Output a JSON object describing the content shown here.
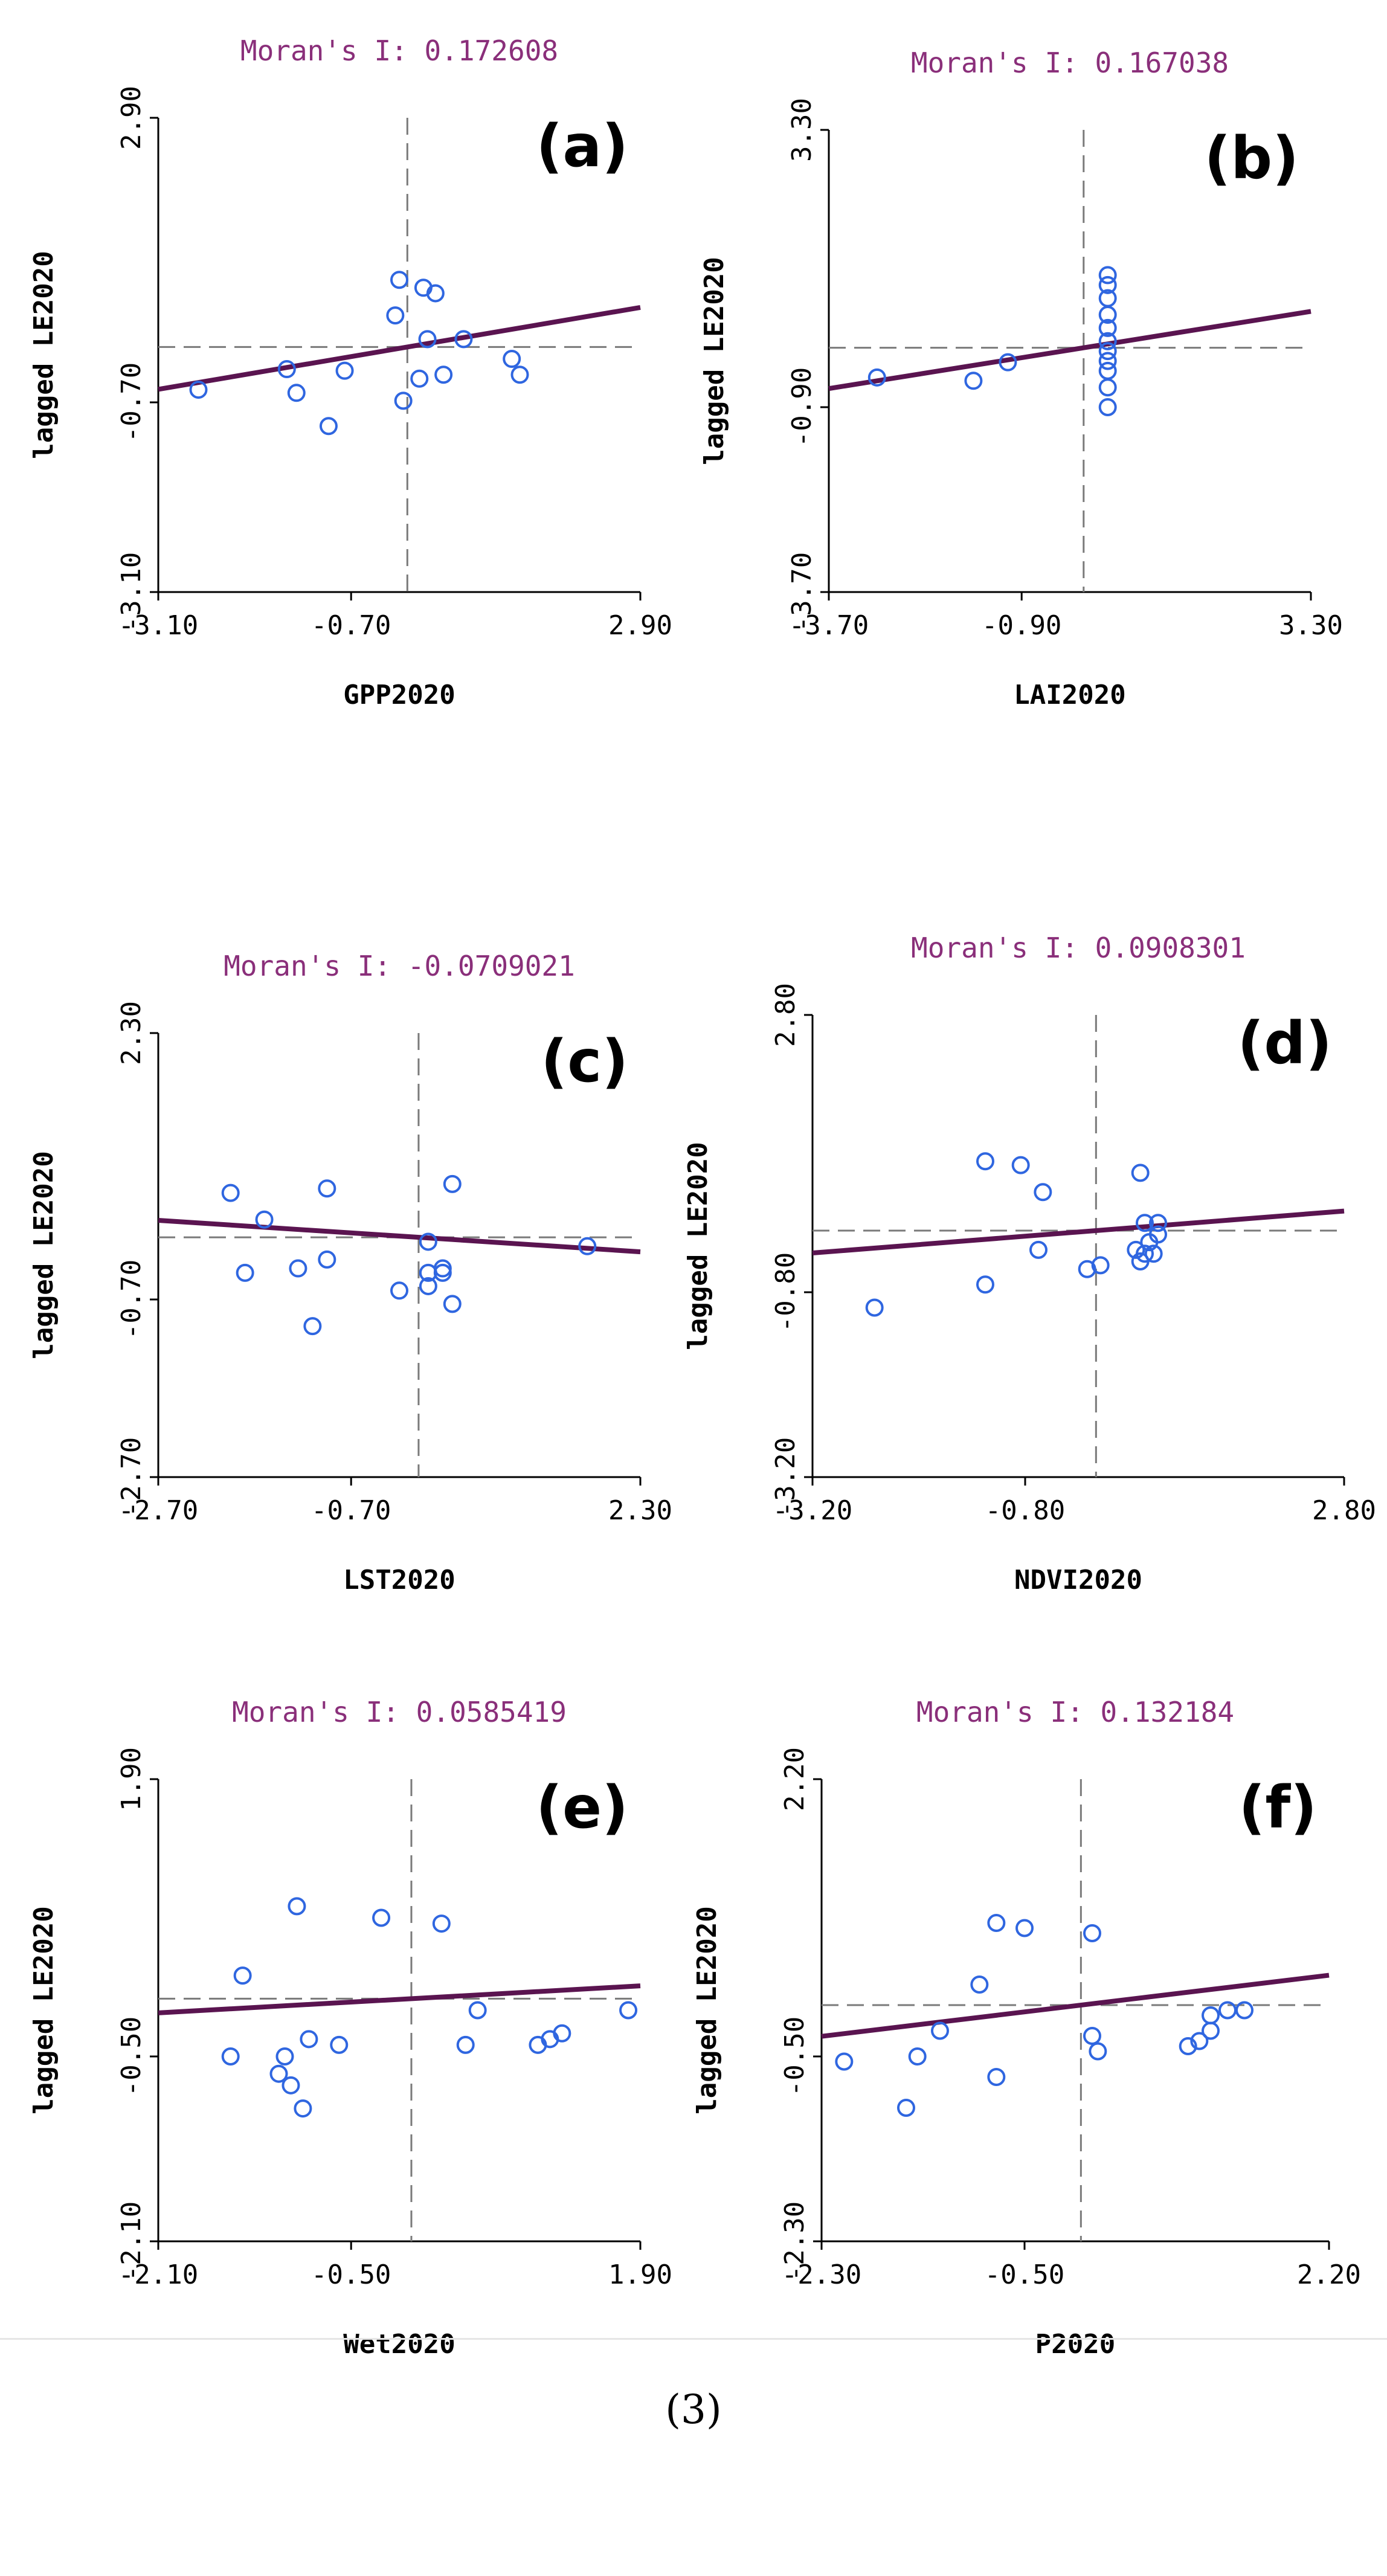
{
  "caption": "(3)",
  "chart_data": [
    {
      "type": "scatter",
      "panel": "(a)",
      "title": "Moran's I: 0.172608",
      "xlabel": "GPP2020",
      "ylabel": "lagged LE2020",
      "xlim": [
        -3.1,
        2.9
      ],
      "ylim": [
        -3.1,
        2.9
      ],
      "xticks": [
        "-3.10",
        "-0.70",
        "2.90"
      ],
      "yticks": [
        "2.90",
        "-0.70",
        "-3.10"
      ],
      "slope": 0.1726,
      "intercept": 0.0,
      "points": [
        [
          -2.6,
          -0.54
        ],
        [
          -1.5,
          -0.28
        ],
        [
          -1.38,
          -0.58
        ],
        [
          -0.78,
          -0.3
        ],
        [
          -0.98,
          -1.0
        ],
        [
          -0.1,
          0.85
        ],
        [
          -0.15,
          0.4
        ],
        [
          0.2,
          0.75
        ],
        [
          0.35,
          0.68
        ],
        [
          0.25,
          0.1
        ],
        [
          0.7,
          0.1
        ],
        [
          0.15,
          -0.4
        ],
        [
          0.45,
          -0.35
        ],
        [
          -0.05,
          -0.68
        ],
        [
          1.3,
          -0.15
        ],
        [
          1.4,
          -0.35
        ]
      ]
    },
    {
      "type": "scatter",
      "panel": "(b)",
      "title": "Moran's I: 0.167038",
      "xlabel": "LAI2020",
      "ylabel": "lagged LE2020",
      "xlim": [
        -3.7,
        3.3
      ],
      "ylim": [
        -3.7,
        3.3
      ],
      "xticks": [
        "-3.70",
        "-0.90",
        "3.30"
      ],
      "yticks": [
        "3.30",
        "-0.90",
        "-3.70"
      ],
      "slope": 0.167,
      "intercept": 0.0,
      "points": [
        [
          -3.0,
          -0.45
        ],
        [
          -1.6,
          -0.5
        ],
        [
          -1.1,
          -0.22
        ],
        [
          0.35,
          1.1
        ],
        [
          0.35,
          0.95
        ],
        [
          0.35,
          0.75
        ],
        [
          0.35,
          0.5
        ],
        [
          0.35,
          0.3
        ],
        [
          0.35,
          0.1
        ],
        [
          0.35,
          -0.05
        ],
        [
          0.35,
          -0.2
        ],
        [
          0.35,
          -0.35
        ],
        [
          0.35,
          -0.6
        ],
        [
          0.35,
          -0.9
        ]
      ]
    },
    {
      "type": "scatter",
      "panel": "(c)",
      "title": "Moran's I: -0.0709021",
      "xlabel": "LST2020",
      "ylabel": "lagged LE2020",
      "xlim": [
        -2.7,
        2.3
      ],
      "ylim": [
        -2.7,
        2.3
      ],
      "xticks": [
        "-2.70",
        "-0.70",
        "2.30"
      ],
      "yticks": [
        "2.30",
        "-0.70",
        "-2.70"
      ],
      "slope": -0.0709,
      "intercept": 0.0,
      "points": [
        [
          -1.95,
          0.5
        ],
        [
          -1.6,
          0.2
        ],
        [
          -1.8,
          -0.4
        ],
        [
          -1.25,
          -0.35
        ],
        [
          -0.95,
          0.55
        ],
        [
          -0.95,
          -0.25
        ],
        [
          -1.1,
          -1.0
        ],
        [
          -0.2,
          -0.6
        ],
        [
          0.1,
          -0.55
        ],
        [
          0.25,
          -0.35
        ],
        [
          0.25,
          -0.4
        ],
        [
          0.1,
          -0.4
        ],
        [
          0.35,
          0.6
        ],
        [
          0.1,
          -0.05
        ],
        [
          0.35,
          -0.75
        ],
        [
          1.75,
          -0.1
        ]
      ]
    },
    {
      "type": "scatter",
      "panel": "(d)",
      "title": "Moran's I: 0.0908301",
      "xlabel": "NDVI2020",
      "ylabel": "lagged LE2020",
      "xlim": [
        -3.2,
        2.8
      ],
      "ylim": [
        -3.2,
        2.8
      ],
      "xticks": [
        "-3.20",
        "-0.80",
        "2.80"
      ],
      "yticks": [
        "2.80",
        "-0.80",
        "-3.20"
      ],
      "slope": 0.0908,
      "intercept": 0.0,
      "points": [
        [
          -2.5,
          -1.0
        ],
        [
          -1.25,
          0.9
        ],
        [
          -0.85,
          0.85
        ],
        [
          -0.6,
          0.5
        ],
        [
          -1.25,
          -0.7
        ],
        [
          -0.65,
          -0.25
        ],
        [
          -0.1,
          -0.5
        ],
        [
          0.05,
          -0.45
        ],
        [
          0.5,
          0.75
        ],
        [
          0.55,
          0.1
        ],
        [
          0.7,
          0.1
        ],
        [
          0.45,
          -0.25
        ],
        [
          0.55,
          -0.3
        ],
        [
          0.65,
          -0.3
        ],
        [
          0.6,
          -0.15
        ],
        [
          0.7,
          -0.05
        ],
        [
          0.5,
          -0.4
        ]
      ]
    },
    {
      "type": "scatter",
      "panel": "(e)",
      "title": "Moran's I: 0.0585419",
      "xlabel": "Wet2020",
      "ylabel": "lagged LE2020",
      "xlim": [
        -2.1,
        1.9
      ],
      "ylim": [
        -2.1,
        1.9
      ],
      "xticks": [
        "-2.10",
        "-0.50",
        "1.90"
      ],
      "yticks": [
        "1.90",
        "-0.50",
        "-2.10"
      ],
      "slope": 0.0585,
      "intercept": 0.0,
      "points": [
        [
          -1.4,
          0.2
        ],
        [
          -1.5,
          -0.5
        ],
        [
          -0.95,
          0.8
        ],
        [
          -1.05,
          -0.5
        ],
        [
          -1.0,
          -0.75
        ],
        [
          -1.1,
          -0.65
        ],
        [
          -0.85,
          -0.35
        ],
        [
          -0.9,
          -0.95
        ],
        [
          -0.6,
          -0.4
        ],
        [
          -0.25,
          0.7
        ],
        [
          0.25,
          0.65
        ],
        [
          0.55,
          -0.1
        ],
        [
          0.45,
          -0.4
        ],
        [
          1.15,
          -0.35
        ],
        [
          1.05,
          -0.4
        ],
        [
          1.25,
          -0.3
        ],
        [
          1.8,
          -0.1
        ]
      ]
    },
    {
      "type": "scatter",
      "panel": "(f)",
      "title": "Moran's I: 0.132184",
      "xlabel": "P2020",
      "ylabel": "lagged LE2020",
      "xlim": [
        -2.3,
        2.2
      ],
      "ylim": [
        -2.3,
        2.2
      ],
      "xticks": [
        "-2.30",
        "-0.50",
        "2.20"
      ],
      "yticks": [
        "2.20",
        "-0.50",
        "-2.30"
      ],
      "slope": 0.1322,
      "intercept": 0.0,
      "points": [
        [
          -2.1,
          -0.55
        ],
        [
          -1.45,
          -0.5
        ],
        [
          -1.25,
          -0.25
        ],
        [
          -0.9,
          0.2
        ],
        [
          -1.55,
          -1.0
        ],
        [
          -0.75,
          -0.7
        ],
        [
          -0.75,
          0.8
        ],
        [
          -0.5,
          0.75
        ],
        [
          0.1,
          0.7
        ],
        [
          0.1,
          -0.3
        ],
        [
          0.15,
          -0.45
        ],
        [
          0.95,
          -0.4
        ],
        [
          1.05,
          -0.35
        ],
        [
          1.15,
          -0.25
        ],
        [
          1.15,
          -0.1
        ],
        [
          1.3,
          -0.05
        ],
        [
          1.45,
          -0.05
        ]
      ]
    }
  ]
}
